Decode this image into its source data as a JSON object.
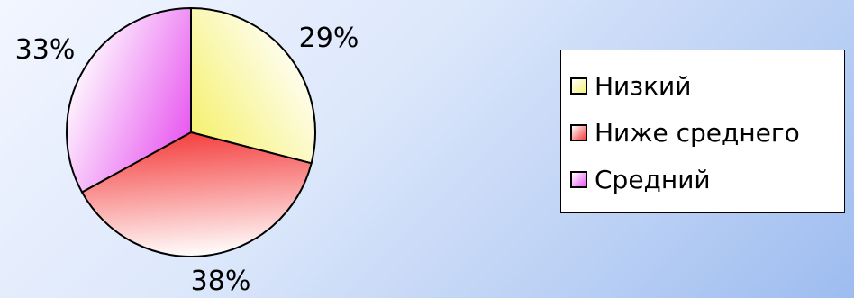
{
  "chart_data": {
    "type": "pie",
    "labels": [
      "Низкий",
      "Ниже среднего",
      "Средний"
    ],
    "values": [
      29,
      38,
      33
    ],
    "value_labels": [
      "29%",
      "38%",
      "33%"
    ],
    "colors": [
      "#f6f27a",
      "#f4403f",
      "#e85cf0"
    ],
    "legend_position": "right",
    "start_angle": "top",
    "direction": "clockwise"
  }
}
